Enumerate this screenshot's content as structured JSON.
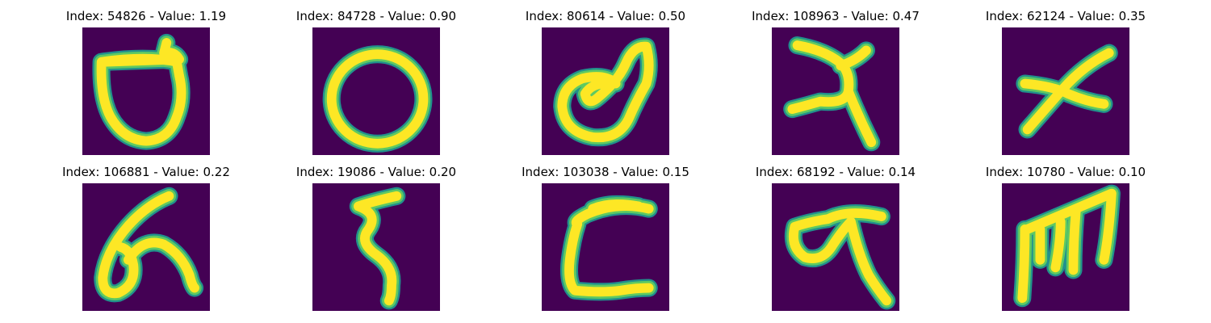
{
  "colors": {
    "background": "#440154",
    "stroke_core": "#fde725",
    "stroke_mid": "#5ec962",
    "stroke_edge": "#21918c"
  },
  "tiles": [
    {
      "title": "Index: 54826 - Value: 1.19"
    },
    {
      "title": "Index: 84728 - Value: 0.90"
    },
    {
      "title": "Index: 80614 - Value: 0.50"
    },
    {
      "title": "Index: 108963 - Value: 0.47"
    },
    {
      "title": "Index: 62124 - Value: 0.35"
    },
    {
      "title": "Index: 106881 - Value: 0.22"
    },
    {
      "title": "Index: 19086 - Value: 0.20"
    },
    {
      "title": "Index: 103038 - Value: 0.15"
    },
    {
      "title": "Index: 68192 - Value: 0.14"
    },
    {
      "title": "Index: 10780 - Value: 0.10"
    }
  ]
}
